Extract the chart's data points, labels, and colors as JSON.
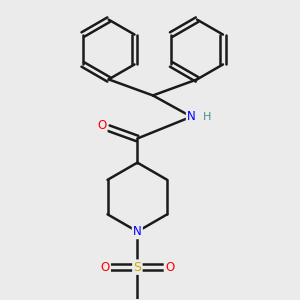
{
  "bg_color": "#ebebeb",
  "bond_color": "#1a1a1a",
  "bond_width": 1.8,
  "atom_colors": {
    "O": "#ff0000",
    "N": "#0000ff",
    "S": "#ccaa00",
    "H": "#4a9090",
    "C": "#1a1a1a"
  },
  "figsize": [
    3.0,
    3.0
  ],
  "dpi": 100
}
